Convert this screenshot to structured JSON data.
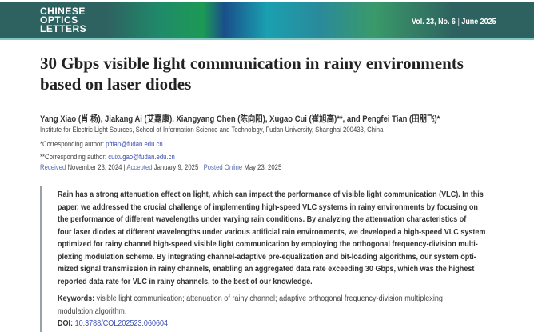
{
  "header": {
    "journal_logo": "CHINESE OPTICS LETTERS",
    "logo_lines": [
      "CHINESE",
      "OPTICS",
      "LETTERS"
    ],
    "volume": "Vol. 23, No. 6",
    "date": "June 2025"
  },
  "title_lines": [
    "30 Gbps visible light communication in rainy environments",
    "based on laser diodes"
  ],
  "authors": "Yang Xiao (肖 杨), Jiakang Ai (艾嘉康), Xiangyang Chen (陈向阳), Xugao Cui (崔旭高)**, and Pengfei Tian (田朋飞)*",
  "affiliation": "Institute for Electric Light Sources, School of Information Science and Technology, Fudan University, Shanghai 200433, China",
  "corresponding": [
    {
      "label": "*Corresponding author: ",
      "email": "pftian@fudan.edu.cn"
    },
    {
      "label": "**Corresponding author: ",
      "email": "cuixugao@fudan.edu.cn"
    }
  ],
  "dates": {
    "received_label": "Received",
    "received": "November 23, 2024",
    "accepted_label": "Accepted",
    "accepted": "January 9, 2025",
    "posted_label": "Posted Online",
    "posted": "May 23, 2025"
  },
  "abstract_lines": [
    "Rain has a strong attenuation effect on light, which can impact the performance of visible light communication (VLC). In this",
    "paper, we addressed the crucial challenge of implementing high-speed VLC systems in rainy environments by focusing on",
    "the performance of different wavelengths under varying rain conditions. By analyzing the attenuation characteristics of",
    "four laser diodes at different wavelengths under various artificial rain environments, we developed a high-speed VLC system",
    "optimized for rainy channel high-speed visible light communication by employing the orthogonal frequency-division multi-",
    "plexing modulation scheme. By integrating channel-adaptive pre-equalization and bit-loading algorithms, our system opti-",
    "mized signal transmission in rainy channels, enabling an aggregated data rate exceeding 30 Gbps, which was the highest",
    "reported data rate for VLC in rainy channels, to the best of our knowledge."
  ],
  "keywords_label": "Keywords:",
  "keywords_lines": [
    " visible light communication; attenuation of rainy channel; adaptive orthogonal frequency-division multiplexing",
    "modulation algorithm."
  ],
  "doi_label": "DOI:",
  "doi": " 10.3788/COL202523.060604"
}
